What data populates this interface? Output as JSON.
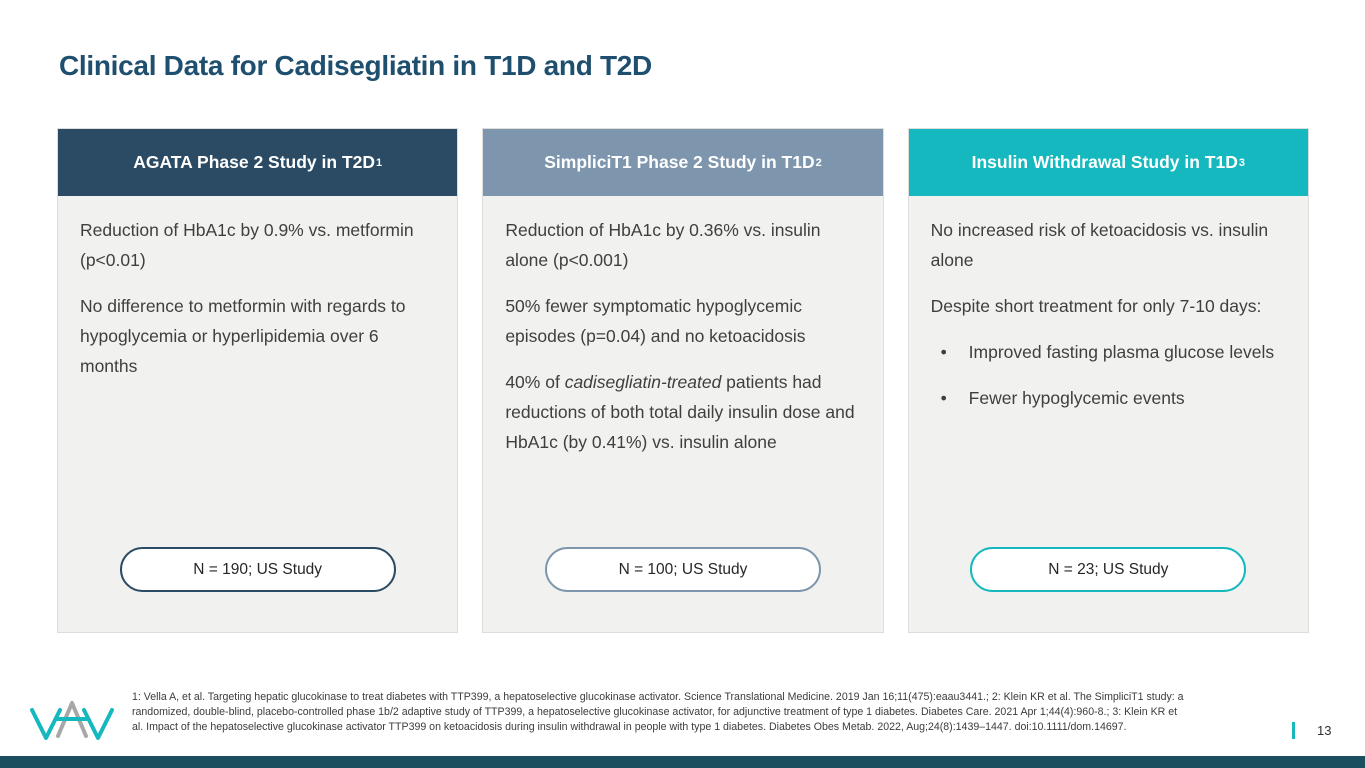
{
  "slide": {
    "title": "Clinical Data for Cadisegliatin in T1D and T2D",
    "page_number": "13",
    "footnote": "1: Vella A, et al. Targeting hepatic glucokinase to treat diabetes with TTP399, a hepatoselective glucokinase activator. Science Translational Medicine. 2019 Jan 16;11(475):eaau3441.; 2: Klein KR et al. The SimpliciT1 study: a randomized, double-blind, placebo-controlled phase 1b/2 adaptive study of TTP399, a hepatoselective glucokinase activator, for adjunctive treatment of type 1 diabetes. Diabetes Care. 2021 Apr 1;44(4):960-8.; 3: Klein KR et al. Impact of the hepatoselective glucokinase activator TTP399 on ketoacidosis during insulin withdrawal in people with type 1 diabetes. Diabetes Obes Metab. 2022, Aug;24(8):1439–1447. doi:10.1111/dom.14697."
  },
  "colors": {
    "title_text": "#1E4F6E",
    "card1_accent": "#2B4B64",
    "card2_accent": "#7E96AD",
    "card3_accent": "#14B8BE",
    "card_body_bg": "#F1F1EF",
    "bottom_bar": "#1B4F60",
    "logo_teal": "#14B8BE",
    "logo_gray": "#A7A7A7"
  },
  "cards": [
    {
      "id": "agata-t2d",
      "accent": "#2B4B64",
      "header": {
        "text": "AGATA Phase 2 Study in T2D",
        "sup": "1"
      },
      "paragraphs": [
        [
          {
            "t": "Reduction of HbA1c by 0.9% vs. metformin (p<0.01)"
          }
        ],
        [
          {
            "t": "No difference to metformin with regards to hypoglycemia or hyperlipidemia over 6 months"
          }
        ]
      ],
      "bullets": [],
      "badge": "N = 190; US Study"
    },
    {
      "id": "simplicit1-t1d",
      "accent": "#7E96AD",
      "header": {
        "text": "SimpliciT1 Phase 2 Study in T1D",
        "sup": "2"
      },
      "paragraphs": [
        [
          {
            "t": "Reduction of HbA1c by 0.36% vs. insulin alone (p<0.001)"
          }
        ],
        [
          {
            "t": "50% fewer symptomatic hypoglycemic episodes (p=0.04) and no ketoacidosis"
          }
        ],
        [
          {
            "t": "40% of "
          },
          {
            "t": "cadisegliatin-treated",
            "i": true
          },
          {
            "t": " patients had reductions of both total daily insulin dose and HbA1c (by 0.41%) vs. insulin alone"
          }
        ]
      ],
      "bullets": [],
      "badge": "N = 100; US Study"
    },
    {
      "id": "insulin-withdrawal-t1d",
      "accent": "#14B8BE",
      "header": {
        "text": "Insulin Withdrawal Study in T1D",
        "sup": "3"
      },
      "paragraphs": [
        [
          {
            "t": "No increased risk of ketoacidosis vs. insulin alone"
          }
        ],
        [
          {
            "t": "Despite short treatment for only 7-10 days:"
          }
        ]
      ],
      "bullets": [
        "Improved fasting plasma glucose levels",
        "Fewer hypoglycemic events"
      ],
      "badge": "N = 23; US Study"
    }
  ],
  "icons": {
    "bullet": "•"
  }
}
